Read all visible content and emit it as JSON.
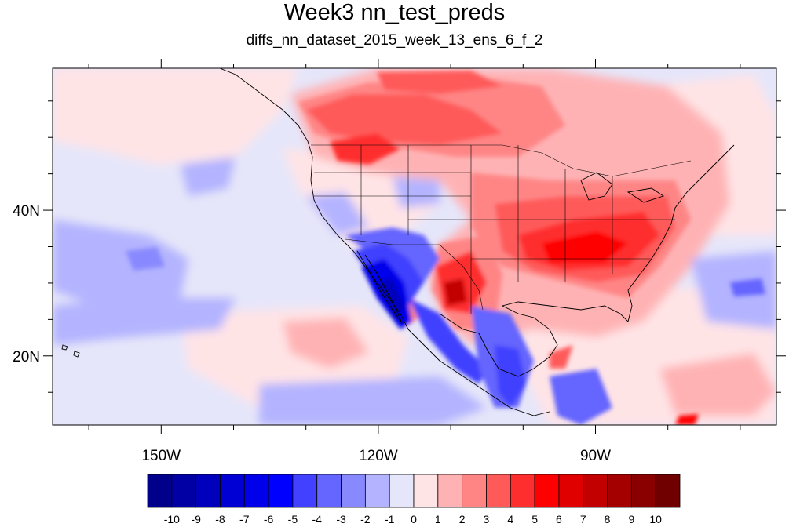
{
  "title": "Week3 nn_test_preds",
  "subtitle": "diffs_nn_dataset_2015_week_13_ens_6_f_2",
  "map": {
    "projection": "cylindrical-equidistant",
    "lon_range": [
      -165,
      -65
    ],
    "lat_range": [
      10.5,
      59.5
    ],
    "lon_ticks": [
      {
        "value": -150,
        "label": "150W"
      },
      {
        "value": -120,
        "label": "120W"
      },
      {
        "value": -90,
        "label": "90W"
      }
    ],
    "lat_ticks": [
      {
        "value": 40,
        "label": "40N"
      },
      {
        "value": 20,
        "label": "20N"
      }
    ],
    "background_color": "#e6e6fa",
    "line_color": "#000000"
  },
  "colorbar": {
    "levels": [
      "-10",
      "-9",
      "-8",
      "-7",
      "-6",
      "-5",
      "-4",
      "-3",
      "-2",
      "-1",
      "0",
      "1",
      "2",
      "3",
      "4",
      "5",
      "6",
      "7",
      "8",
      "9",
      "10"
    ],
    "colors": [
      "#00008b",
      "#0000a4",
      "#0000bc",
      "#0000d4",
      "#0000ea",
      "#0000ff",
      "#4141ff",
      "#6565ff",
      "#8989ff",
      "#b3b3ff",
      "#e6e6fa",
      "#ffe4e6",
      "#ffb2b4",
      "#ff8585",
      "#ff5a5a",
      "#ff2e2e",
      "#ff0000",
      "#e00000",
      "#c20000",
      "#a40000",
      "#8a0000",
      "#700000"
    ]
  }
}
